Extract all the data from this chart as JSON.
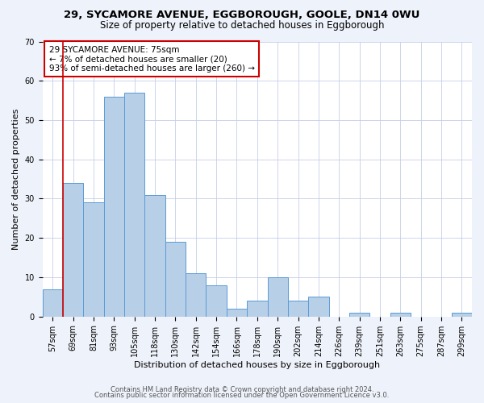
{
  "title1": "29, SYCAMORE AVENUE, EGGBOROUGH, GOOLE, DN14 0WU",
  "title2": "Size of property relative to detached houses in Eggborough",
  "xlabel": "Distribution of detached houses by size in Eggborough",
  "ylabel": "Number of detached properties",
  "bar_labels": [
    "57sqm",
    "69sqm",
    "81sqm",
    "93sqm",
    "105sqm",
    "118sqm",
    "130sqm",
    "142sqm",
    "154sqm",
    "166sqm",
    "178sqm",
    "190sqm",
    "202sqm",
    "214sqm",
    "226sqm",
    "239sqm",
    "251sqm",
    "263sqm",
    "275sqm",
    "287sqm",
    "299sqm"
  ],
  "bar_values": [
    7,
    34,
    29,
    56,
    57,
    31,
    19,
    11,
    8,
    2,
    4,
    10,
    4,
    5,
    0,
    1,
    0,
    1,
    0,
    0,
    1
  ],
  "bar_color": "#b8cfe8",
  "bar_edge_color": "#5b9bd5",
  "ylim": [
    0,
    70
  ],
  "yticks": [
    0,
    10,
    20,
    30,
    40,
    50,
    60,
    70
  ],
  "vline_color": "#cc0000",
  "vline_x_index": 1,
  "annotation_title": "29 SYCAMORE AVENUE: 75sqm",
  "annotation_line1": "← 7% of detached houses are smaller (20)",
  "annotation_line2": "93% of semi-detached houses are larger (260) →",
  "annotation_box_color": "#ffffff",
  "annotation_box_edge": "#cc0000",
  "footer1": "Contains HM Land Registry data © Crown copyright and database right 2024.",
  "footer2": "Contains public sector information licensed under the Open Government Licence v3.0.",
  "bg_color": "#eef2fa",
  "plot_bg_color": "#ffffff",
  "title1_fontsize": 9.5,
  "title2_fontsize": 8.5,
  "xlabel_fontsize": 8,
  "ylabel_fontsize": 8,
  "tick_fontsize": 7,
  "annotation_fontsize": 7.5,
  "footer_fontsize": 6
}
